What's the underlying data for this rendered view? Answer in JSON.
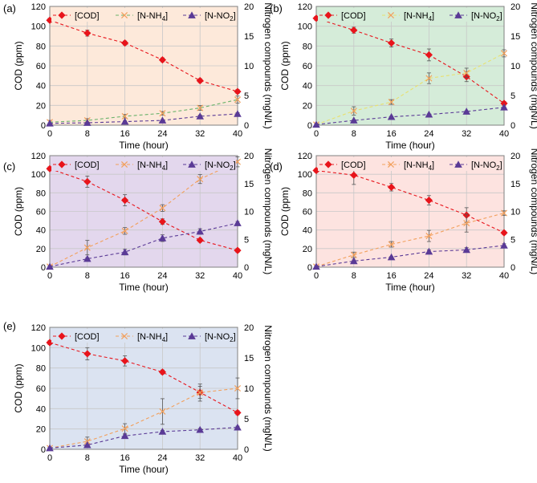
{
  "figure": {
    "xlabel": "Time (hour)",
    "ylabel_left": "COD (ppm)",
    "ylabel_right": "Nitrogen compounds (mgN/L)",
    "legend": {
      "cod": "[COD]",
      "nh4_prefix": "[N-NH",
      "nh4_sub": "4",
      "no2_prefix": "[N-NO",
      "no2_sub": "2",
      "suffix": "]"
    },
    "colors": {
      "cod": "#e8141b",
      "nh4": "#f2a05c",
      "no2": "#5a3a96",
      "grid": "#c8c8c8"
    }
  },
  "chart_data": [
    {
      "type": "line",
      "panel_label": "(a)",
      "background": "#fde9da",
      "nh4_color": "#f2a05c",
      "nh4_line": "#6bb36b",
      "x": [
        0,
        8,
        16,
        24,
        32,
        40
      ],
      "xlim": [
        0,
        40
      ],
      "ylim_left": [
        0,
        120
      ],
      "ylim_right": [
        0,
        20
      ],
      "x_ticks": [
        "0",
        "8",
        "16",
        "24",
        "32",
        "40"
      ],
      "y_left_ticks": [
        "0",
        "20",
        "40",
        "60",
        "80",
        "100",
        "120"
      ],
      "y_right_ticks": [
        "0",
        "5",
        "10",
        "15",
        "20"
      ],
      "series": [
        {
          "name": "[COD]",
          "axis": "left",
          "values": [
            106,
            93,
            83,
            66,
            45,
            34
          ],
          "errors": [
            2,
            3,
            2,
            2,
            2,
            2
          ]
        },
        {
          "name": "[N-NH4]",
          "axis": "right",
          "values": [
            0.5,
            0.8,
            1.5,
            2.0,
            2.9,
            4.3
          ],
          "errors": [
            0.3,
            0.3,
            0.3,
            0.3,
            0.4,
            0.6
          ]
        },
        {
          "name": "[N-NO2]",
          "axis": "right",
          "values": [
            0.3,
            0.4,
            0.6,
            0.8,
            1.5,
            1.9
          ],
          "errors": [
            0.1,
            0.1,
            0.1,
            0.1,
            0.2,
            0.2
          ]
        }
      ]
    },
    {
      "type": "line",
      "panel_label": "(b)",
      "background": "#d5ecd9",
      "nh4_color": "#f2a05c",
      "nh4_line": "#e8e070",
      "x": [
        0,
        8,
        16,
        24,
        32,
        40
      ],
      "xlim": [
        0,
        40
      ],
      "ylim_left": [
        0,
        120
      ],
      "ylim_right": [
        0,
        20
      ],
      "x_ticks": [
        "0",
        "8",
        "16",
        "24",
        "32",
        "40"
      ],
      "y_left_ticks": [
        "0",
        "20",
        "40",
        "60",
        "80",
        "100",
        "120"
      ],
      "y_right_ticks": [
        "0",
        "5",
        "10",
        "15",
        "20"
      ],
      "series": [
        {
          "name": "[COD]",
          "axis": "left",
          "values": [
            108,
            96,
            83,
            71,
            49,
            22
          ],
          "errors": [
            2,
            3,
            4,
            6,
            5,
            2
          ]
        },
        {
          "name": "[N-NH4]",
          "axis": "right",
          "values": [
            0.1,
            2.4,
            3.9,
            7.9,
            8.8,
            12.1
          ],
          "errors": [
            0.2,
            0.7,
            0.4,
            0.9,
            0.8,
            0.6
          ]
        },
        {
          "name": "[N-NO2]",
          "axis": "right",
          "values": [
            0.1,
            0.8,
            1.4,
            1.8,
            2.3,
            3.0
          ],
          "errors": [
            0.1,
            0.1,
            0.1,
            0.1,
            0.1,
            0.1
          ]
        }
      ]
    },
    {
      "type": "line",
      "panel_label": "(c)",
      "background": "#e3d7ed",
      "nh4_color": "#f2a05c",
      "nh4_line": "#f2a05c",
      "x": [
        0,
        8,
        16,
        24,
        32,
        40
      ],
      "xlim": [
        0,
        40
      ],
      "ylim_left": [
        0,
        120
      ],
      "ylim_right": [
        0,
        20
      ],
      "x_ticks": [
        "0",
        "8",
        "16",
        "24",
        "32",
        "40"
      ],
      "y_left_ticks": [
        "0",
        "20",
        "40",
        "60",
        "80",
        "100",
        "120"
      ],
      "y_right_ticks": [
        "0",
        "5",
        "10",
        "15",
        "20"
      ],
      "series": [
        {
          "name": "[COD]",
          "axis": "left",
          "values": [
            106,
            92,
            72,
            49,
            29,
            18
          ],
          "errors": [
            2,
            6,
            6,
            3,
            2,
            2
          ]
        },
        {
          "name": "[N-NH4]",
          "axis": "right",
          "values": [
            0.1,
            3.5,
            6.5,
            10.6,
            15.8,
            18.9
          ],
          "errors": [
            0.2,
            1.3,
            0.6,
            0.6,
            0.8,
            0.9
          ]
        },
        {
          "name": "[N-NO2]",
          "axis": "right",
          "values": [
            0.1,
            1.5,
            2.7,
            5.2,
            6.4,
            7.9
          ],
          "errors": [
            0.1,
            0.2,
            0.5,
            0.6,
            0.5,
            0.3
          ]
        }
      ]
    },
    {
      "type": "line",
      "panel_label": "(d)",
      "background": "#fde3e0",
      "nh4_color": "#f2a05c",
      "nh4_line": "#f2a05c",
      "x": [
        0,
        8,
        16,
        24,
        32,
        40
      ],
      "xlim": [
        0,
        40
      ],
      "ylim_left": [
        0,
        120
      ],
      "ylim_right": [
        0,
        20
      ],
      "x_ticks": [
        "0",
        "8",
        "16",
        "24",
        "32",
        "40"
      ],
      "y_left_ticks": [
        "0",
        "20",
        "40",
        "60",
        "80",
        "100",
        "120"
      ],
      "y_right_ticks": [
        "0",
        "5",
        "10",
        "15",
        "20"
      ],
      "series": [
        {
          "name": "[COD]",
          "axis": "left",
          "values": [
            104,
            99,
            86,
            72,
            56,
            37
          ],
          "errors": [
            2,
            10,
            4,
            5,
            8,
            2
          ]
        },
        {
          "name": "[N-NH4]",
          "axis": "right",
          "values": [
            0.1,
            2.2,
            4.1,
            5.6,
            7.9,
            9.7
          ],
          "errors": [
            0.2,
            0.5,
            0.5,
            1.0,
            1.6,
            0.4
          ]
        },
        {
          "name": "[N-NO2]",
          "axis": "right",
          "values": [
            0.1,
            1.1,
            1.8,
            2.8,
            3.1,
            3.9
          ],
          "errors": [
            0.1,
            0.2,
            0.1,
            0.3,
            0.4,
            0.3
          ]
        }
      ]
    },
    {
      "type": "line",
      "panel_label": "(e)",
      "background": "#dbe3f1",
      "nh4_color": "#f2a05c",
      "nh4_line": "#f2a05c",
      "x": [
        0,
        8,
        16,
        24,
        32,
        40
      ],
      "xlim": [
        0,
        40
      ],
      "ylim_left": [
        0,
        120
      ],
      "ylim_right": [
        0,
        20
      ],
      "x_ticks": [
        "0",
        "8",
        "16",
        "24",
        "32",
        "40"
      ],
      "y_left_ticks": [
        "0",
        "20",
        "40",
        "60",
        "80",
        "100",
        "120"
      ],
      "y_right_ticks": [
        "0",
        "5",
        "10",
        "15",
        "20"
      ],
      "series": [
        {
          "name": "[COD]",
          "axis": "left",
          "values": [
            105,
            94,
            87,
            76,
            56,
            36
          ],
          "errors": [
            2,
            6,
            5,
            2,
            6,
            2
          ]
        },
        {
          "name": "[N-NH4]",
          "axis": "right",
          "values": [
            0.2,
            1.3,
            3.4,
            6.2,
            9.3,
            10.0
          ],
          "errors": [
            0.2,
            0.7,
            0.8,
            2.1,
            1.4,
            1.7
          ]
        },
        {
          "name": "[N-NO2]",
          "axis": "right",
          "values": [
            0.2,
            0.7,
            2.2,
            2.9,
            3.2,
            3.6
          ],
          "errors": [
            0.1,
            0.1,
            0.2,
            0.2,
            0.2,
            0.2
          ]
        }
      ]
    }
  ]
}
